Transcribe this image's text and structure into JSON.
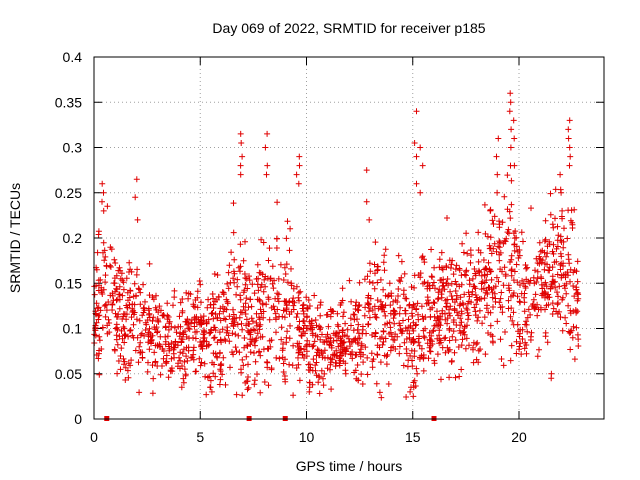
{
  "chart_data": {
    "type": "scatter",
    "title": "Day 069 of 2022, SRMTID for receiver p185",
    "xlabel": "GPS time / hours",
    "ylabel": "SRMTID / TECUs",
    "xlim": [
      0,
      24
    ],
    "ylim": [
      0,
      0.4
    ],
    "xticks": [
      0,
      5,
      10,
      15,
      20
    ],
    "yticks": [
      0,
      0.05,
      0.1,
      0.15,
      0.2,
      0.25,
      0.3,
      0.35,
      0.4
    ],
    "xtick_labels": [
      "0",
      "5",
      "10",
      "15",
      "20"
    ],
    "ytick_labels": [
      "0",
      "0.05",
      "0.1",
      "0.15",
      "0.2",
      "0.25",
      "0.3",
      "0.35",
      "0.4"
    ],
    "grid": true,
    "marker": "plus",
    "color": "#e00000",
    "zero_markers_x": [
      0.6,
      7.3,
      9.0,
      16.0
    ],
    "envelope": {
      "x": [
        0,
        0.5,
        1,
        1.5,
        2,
        2.5,
        3,
        3.5,
        4,
        4.5,
        5,
        5.5,
        6,
        6.5,
        7,
        7.5,
        8,
        8.5,
        9,
        9.5,
        10,
        10.5,
        11,
        11.5,
        12,
        12.5,
        13,
        13.5,
        14,
        14.5,
        15,
        15.5,
        16,
        16.5,
        17,
        17.5,
        18,
        18.5,
        19,
        19.5,
        20,
        20.5,
        21,
        21.5,
        22,
        22.5,
        22.8
      ],
      "center": [
        0.12,
        0.14,
        0.12,
        0.11,
        0.12,
        0.11,
        0.1,
        0.09,
        0.085,
        0.09,
        0.1,
        0.09,
        0.1,
        0.12,
        0.13,
        0.09,
        0.12,
        0.13,
        0.12,
        0.1,
        0.09,
        0.08,
        0.085,
        0.08,
        0.09,
        0.09,
        0.11,
        0.12,
        0.1,
        0.12,
        0.1,
        0.12,
        0.12,
        0.13,
        0.12,
        0.14,
        0.14,
        0.15,
        0.16,
        0.17,
        0.15,
        0.13,
        0.14,
        0.16,
        0.16,
        0.15,
        0.12
      ],
      "spread": [
        0.03,
        0.05,
        0.04,
        0.035,
        0.045,
        0.035,
        0.03,
        0.025,
        0.025,
        0.03,
        0.03,
        0.03,
        0.035,
        0.045,
        0.06,
        0.03,
        0.05,
        0.055,
        0.05,
        0.03,
        0.03,
        0.03,
        0.025,
        0.025,
        0.03,
        0.03,
        0.04,
        0.05,
        0.035,
        0.04,
        0.04,
        0.045,
        0.04,
        0.04,
        0.04,
        0.045,
        0.045,
        0.05,
        0.055,
        0.06,
        0.05,
        0.04,
        0.04,
        0.05,
        0.05,
        0.05,
        0.04
      ]
    },
    "spikes": [
      {
        "x": 0.45,
        "y": [
          0.26,
          0.25,
          0.24,
          0.23
        ]
      },
      {
        "x": 2.0,
        "y": [
          0.265,
          0.245,
          0.22
        ]
      },
      {
        "x": 6.9,
        "y": [
          0.315,
          0.305,
          0.29,
          0.28,
          0.27
        ]
      },
      {
        "x": 8.1,
        "y": [
          0.315,
          0.3,
          0.28,
          0.27
        ]
      },
      {
        "x": 9.6,
        "y": [
          0.29,
          0.28,
          0.27,
          0.26
        ]
      },
      {
        "x": 12.9,
        "y": [
          0.275,
          0.24,
          0.22
        ]
      },
      {
        "x": 15.15,
        "y": [
          0.34,
          0.305,
          0.29,
          0.26
        ]
      },
      {
        "x": 15.4,
        "y": [
          0.3,
          0.28,
          0.25
        ]
      },
      {
        "x": 19.0,
        "y": [
          0.31,
          0.29,
          0.27,
          0.25
        ]
      },
      {
        "x": 19.6,
        "y": [
          0.36,
          0.35,
          0.34,
          0.32,
          0.3,
          0.28
        ]
      },
      {
        "x": 19.8,
        "y": [
          0.33,
          0.31,
          0.28
        ]
      },
      {
        "x": 22.35,
        "y": [
          0.33,
          0.32,
          0.31,
          0.3,
          0.29,
          0.28
        ]
      },
      {
        "x": 22.0,
        "y": [
          0.27,
          0.25,
          0.23
        ]
      }
    ],
    "dips": [
      {
        "x": 4.2,
        "y": [
          0.035,
          0.04
        ]
      },
      {
        "x": 5.5,
        "y": [
          0.03,
          0.035
        ]
      },
      {
        "x": 10.2,
        "y": [
          0.03,
          0.035,
          0.04
        ]
      },
      {
        "x": 14.9,
        "y": [
          0.03,
          0.035
        ]
      },
      {
        "x": 15.1,
        "y": [
          0.025,
          0.035
        ]
      },
      {
        "x": 21.5,
        "y": [
          0.045,
          0.05
        ]
      }
    ]
  }
}
